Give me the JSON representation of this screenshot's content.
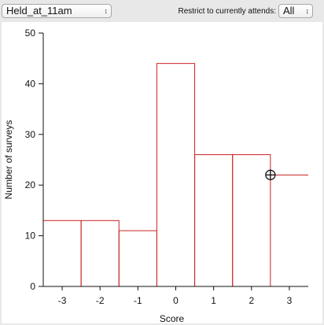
{
  "toolbar": {
    "variable_select": {
      "value": "Held_at_11am"
    },
    "filter_label": "Restrict to currently attends:",
    "filter_select": {
      "value": "All"
    }
  },
  "chart_data": {
    "type": "bar",
    "categories": [
      "-3",
      "-2",
      "-1",
      "0",
      "1",
      "2",
      "3"
    ],
    "x": [
      -3,
      -2,
      -1,
      0,
      1,
      2,
      3
    ],
    "values": [
      13,
      13,
      11,
      44,
      26,
      26,
      22
    ],
    "xlabel": "Score",
    "ylabel": "Number of surveys",
    "ylim": [
      0,
      50
    ],
    "xlim": [
      -3.5,
      3.5
    ],
    "yticks": [
      0,
      10,
      20,
      30,
      40,
      50
    ],
    "xticks": [
      -3,
      -2,
      -1,
      0,
      1,
      2,
      3
    ],
    "grid": false,
    "bar_color": "#cc2222",
    "cursor": {
      "x": 2.5,
      "y": 22
    }
  }
}
